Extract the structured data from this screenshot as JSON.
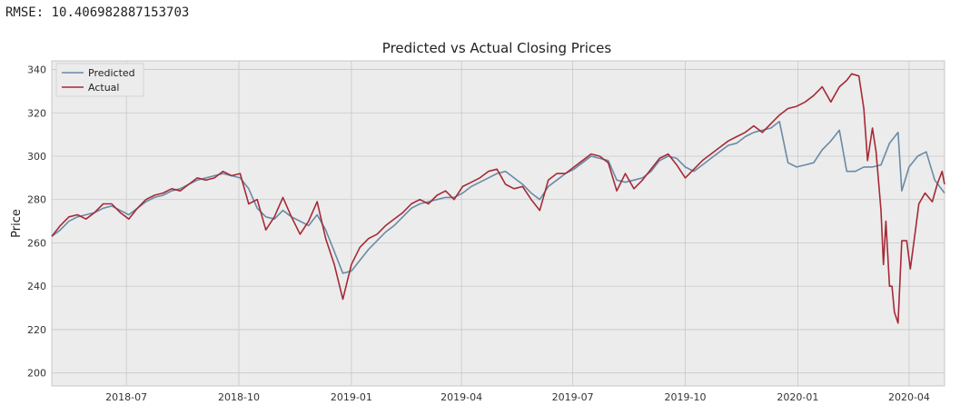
{
  "output": {
    "rmse_label": "RMSE:",
    "rmse_value": "10.406982887153703"
  },
  "colors": {
    "predicted": "#6a8aa6",
    "actual": "#a52a36",
    "plot_background": "#ececec",
    "grid": "#c8c8c8"
  },
  "chart_data": {
    "type": "line",
    "title": "Predicted vs Actual Closing Prices",
    "xlabel": "",
    "ylabel": "Price",
    "grid": true,
    "legend_position": "top-left",
    "xlim": [
      "2018-05-01",
      "2020-04-30"
    ],
    "ylim": [
      194,
      344
    ],
    "yticks": [
      200,
      220,
      240,
      260,
      280,
      300,
      320,
      340
    ],
    "xticks": [
      "2018-07-01",
      "2018-10-01",
      "2019-01-01",
      "2019-04-01",
      "2019-07-01",
      "2019-10-01",
      "2020-01-01",
      "2020-04-01"
    ],
    "xtick_labels": [
      "2018-07",
      "2018-10",
      "2019-01",
      "2019-04",
      "2019-07",
      "2019-10",
      "2020-01",
      "2020-04"
    ],
    "series": [
      {
        "name": "Predicted",
        "points": [
          [
            "2018-05-01",
            263
          ],
          [
            "2018-05-08",
            266
          ],
          [
            "2018-05-15",
            270
          ],
          [
            "2018-05-22",
            272
          ],
          [
            "2018-05-29",
            273
          ],
          [
            "2018-06-05",
            274
          ],
          [
            "2018-06-12",
            276
          ],
          [
            "2018-06-19",
            277
          ],
          [
            "2018-06-26",
            275
          ],
          [
            "2018-07-03",
            273
          ],
          [
            "2018-07-10",
            276
          ],
          [
            "2018-07-17",
            279
          ],
          [
            "2018-07-24",
            281
          ],
          [
            "2018-07-31",
            282
          ],
          [
            "2018-08-07",
            284
          ],
          [
            "2018-08-14",
            285
          ],
          [
            "2018-08-21",
            287
          ],
          [
            "2018-08-28",
            289
          ],
          [
            "2018-09-04",
            290
          ],
          [
            "2018-09-11",
            291
          ],
          [
            "2018-09-18",
            292
          ],
          [
            "2018-09-25",
            291
          ],
          [
            "2018-10-02",
            290
          ],
          [
            "2018-10-09",
            285
          ],
          [
            "2018-10-16",
            276
          ],
          [
            "2018-10-23",
            272
          ],
          [
            "2018-10-30",
            271
          ],
          [
            "2018-11-06",
            275
          ],
          [
            "2018-11-13",
            272
          ],
          [
            "2018-11-20",
            270
          ],
          [
            "2018-11-27",
            268
          ],
          [
            "2018-12-04",
            273
          ],
          [
            "2018-12-11",
            266
          ],
          [
            "2018-12-18",
            256
          ],
          [
            "2018-12-25",
            246
          ],
          [
            "2019-01-01",
            247
          ],
          [
            "2019-01-08",
            252
          ],
          [
            "2019-01-15",
            257
          ],
          [
            "2019-01-22",
            261
          ],
          [
            "2019-01-29",
            265
          ],
          [
            "2019-02-05",
            268
          ],
          [
            "2019-02-12",
            272
          ],
          [
            "2019-02-19",
            276
          ],
          [
            "2019-02-26",
            278
          ],
          [
            "2019-03-05",
            279
          ],
          [
            "2019-03-12",
            280
          ],
          [
            "2019-03-19",
            281
          ],
          [
            "2019-03-26",
            281
          ],
          [
            "2019-04-02",
            283
          ],
          [
            "2019-04-09",
            286
          ],
          [
            "2019-04-16",
            288
          ],
          [
            "2019-04-23",
            290
          ],
          [
            "2019-04-30",
            292
          ],
          [
            "2019-05-07",
            293
          ],
          [
            "2019-05-14",
            290
          ],
          [
            "2019-05-21",
            287
          ],
          [
            "2019-05-28",
            283
          ],
          [
            "2019-06-04",
            280
          ],
          [
            "2019-06-11",
            286
          ],
          [
            "2019-06-18",
            289
          ],
          [
            "2019-06-25",
            292
          ],
          [
            "2019-07-02",
            294
          ],
          [
            "2019-07-09",
            297
          ],
          [
            "2019-07-16",
            300
          ],
          [
            "2019-07-23",
            299
          ],
          [
            "2019-07-30",
            298
          ],
          [
            "2019-08-06",
            289
          ],
          [
            "2019-08-13",
            288
          ],
          [
            "2019-08-20",
            289
          ],
          [
            "2019-08-27",
            290
          ],
          [
            "2019-09-03",
            293
          ],
          [
            "2019-09-10",
            298
          ],
          [
            "2019-09-17",
            300
          ],
          [
            "2019-09-24",
            299
          ],
          [
            "2019-10-01",
            295
          ],
          [
            "2019-10-08",
            293
          ],
          [
            "2019-10-15",
            296
          ],
          [
            "2019-10-22",
            299
          ],
          [
            "2019-10-29",
            302
          ],
          [
            "2019-11-05",
            305
          ],
          [
            "2019-11-12",
            306
          ],
          [
            "2019-11-19",
            309
          ],
          [
            "2019-11-26",
            311
          ],
          [
            "2019-12-03",
            312
          ],
          [
            "2019-12-10",
            313
          ],
          [
            "2019-12-17",
            316
          ],
          [
            "2019-12-24",
            297
          ],
          [
            "2019-12-31",
            295
          ],
          [
            "2020-01-07",
            296
          ],
          [
            "2020-01-14",
            297
          ],
          [
            "2020-01-21",
            303
          ],
          [
            "2020-01-28",
            307
          ],
          [
            "2020-02-04",
            312
          ],
          [
            "2020-02-10",
            293
          ],
          [
            "2020-02-17",
            293
          ],
          [
            "2020-02-24",
            295
          ],
          [
            "2020-03-02",
            295
          ],
          [
            "2020-03-09",
            296
          ],
          [
            "2020-03-16",
            306
          ],
          [
            "2020-03-23",
            311
          ],
          [
            "2020-03-26",
            284
          ],
          [
            "2020-04-01",
            295
          ],
          [
            "2020-04-08",
            300
          ],
          [
            "2020-04-15",
            302
          ],
          [
            "2020-04-22",
            289
          ],
          [
            "2020-04-30",
            283
          ]
        ]
      },
      {
        "name": "Actual",
        "points": [
          [
            "2018-05-01",
            263
          ],
          [
            "2018-05-08",
            268
          ],
          [
            "2018-05-15",
            272
          ],
          [
            "2018-05-22",
            273
          ],
          [
            "2018-05-29",
            271
          ],
          [
            "2018-06-05",
            274
          ],
          [
            "2018-06-12",
            278
          ],
          [
            "2018-06-19",
            278
          ],
          [
            "2018-06-26",
            274
          ],
          [
            "2018-07-03",
            271
          ],
          [
            "2018-07-10",
            276
          ],
          [
            "2018-07-17",
            280
          ],
          [
            "2018-07-24",
            282
          ],
          [
            "2018-07-31",
            283
          ],
          [
            "2018-08-07",
            285
          ],
          [
            "2018-08-14",
            284
          ],
          [
            "2018-08-21",
            287
          ],
          [
            "2018-08-28",
            290
          ],
          [
            "2018-09-04",
            289
          ],
          [
            "2018-09-11",
            290
          ],
          [
            "2018-09-18",
            293
          ],
          [
            "2018-09-25",
            291
          ],
          [
            "2018-10-02",
            292
          ],
          [
            "2018-10-09",
            278
          ],
          [
            "2018-10-16",
            280
          ],
          [
            "2018-10-23",
            266
          ],
          [
            "2018-10-30",
            272
          ],
          [
            "2018-11-06",
            281
          ],
          [
            "2018-11-13",
            272
          ],
          [
            "2018-11-20",
            264
          ],
          [
            "2018-11-27",
            270
          ],
          [
            "2018-12-04",
            279
          ],
          [
            "2018-12-11",
            262
          ],
          [
            "2018-12-18",
            250
          ],
          [
            "2018-12-25",
            234
          ],
          [
            "2019-01-01",
            250
          ],
          [
            "2019-01-08",
            258
          ],
          [
            "2019-01-15",
            262
          ],
          [
            "2019-01-22",
            264
          ],
          [
            "2019-01-29",
            268
          ],
          [
            "2019-02-05",
            271
          ],
          [
            "2019-02-12",
            274
          ],
          [
            "2019-02-19",
            278
          ],
          [
            "2019-02-26",
            280
          ],
          [
            "2019-03-05",
            278
          ],
          [
            "2019-03-12",
            282
          ],
          [
            "2019-03-19",
            284
          ],
          [
            "2019-03-26",
            280
          ],
          [
            "2019-04-02",
            286
          ],
          [
            "2019-04-09",
            288
          ],
          [
            "2019-04-16",
            290
          ],
          [
            "2019-04-23",
            293
          ],
          [
            "2019-04-30",
            294
          ],
          [
            "2019-05-07",
            287
          ],
          [
            "2019-05-14",
            285
          ],
          [
            "2019-05-21",
            286
          ],
          [
            "2019-05-28",
            280
          ],
          [
            "2019-06-04",
            275
          ],
          [
            "2019-06-11",
            289
          ],
          [
            "2019-06-18",
            292
          ],
          [
            "2019-06-25",
            292
          ],
          [
            "2019-07-02",
            295
          ],
          [
            "2019-07-09",
            298
          ],
          [
            "2019-07-16",
            301
          ],
          [
            "2019-07-23",
            300
          ],
          [
            "2019-07-30",
            297
          ],
          [
            "2019-08-06",
            284
          ],
          [
            "2019-08-13",
            292
          ],
          [
            "2019-08-20",
            285
          ],
          [
            "2019-08-27",
            289
          ],
          [
            "2019-09-03",
            294
          ],
          [
            "2019-09-10",
            299
          ],
          [
            "2019-09-17",
            301
          ],
          [
            "2019-09-24",
            296
          ],
          [
            "2019-10-01",
            290
          ],
          [
            "2019-10-08",
            294
          ],
          [
            "2019-10-15",
            298
          ],
          [
            "2019-10-22",
            301
          ],
          [
            "2019-10-29",
            304
          ],
          [
            "2019-11-05",
            307
          ],
          [
            "2019-11-12",
            309
          ],
          [
            "2019-11-19",
            311
          ],
          [
            "2019-11-26",
            314
          ],
          [
            "2019-12-03",
            311
          ],
          [
            "2019-12-10",
            315
          ],
          [
            "2019-12-17",
            319
          ],
          [
            "2019-12-24",
            322
          ],
          [
            "2019-12-31",
            323
          ],
          [
            "2020-01-07",
            325
          ],
          [
            "2020-01-14",
            328
          ],
          [
            "2020-01-21",
            332
          ],
          [
            "2020-01-28",
            325
          ],
          [
            "2020-02-04",
            332
          ],
          [
            "2020-02-10",
            335
          ],
          [
            "2020-02-14",
            338
          ],
          [
            "2020-02-20",
            337
          ],
          [
            "2020-02-24",
            322
          ],
          [
            "2020-02-27",
            298
          ],
          [
            "2020-03-02",
            313
          ],
          [
            "2020-03-05",
            302
          ],
          [
            "2020-03-09",
            275
          ],
          [
            "2020-03-11",
            250
          ],
          [
            "2020-03-13",
            270
          ],
          [
            "2020-03-16",
            240
          ],
          [
            "2020-03-18",
            240
          ],
          [
            "2020-03-20",
            228
          ],
          [
            "2020-03-23",
            223
          ],
          [
            "2020-03-26",
            261
          ],
          [
            "2020-03-30",
            261
          ],
          [
            "2020-04-02",
            248
          ],
          [
            "2020-04-06",
            265
          ],
          [
            "2020-04-09",
            278
          ],
          [
            "2020-04-14",
            283
          ],
          [
            "2020-04-20",
            279
          ],
          [
            "2020-04-24",
            287
          ],
          [
            "2020-04-28",
            293
          ],
          [
            "2020-04-30",
            287
          ]
        ]
      }
    ]
  }
}
